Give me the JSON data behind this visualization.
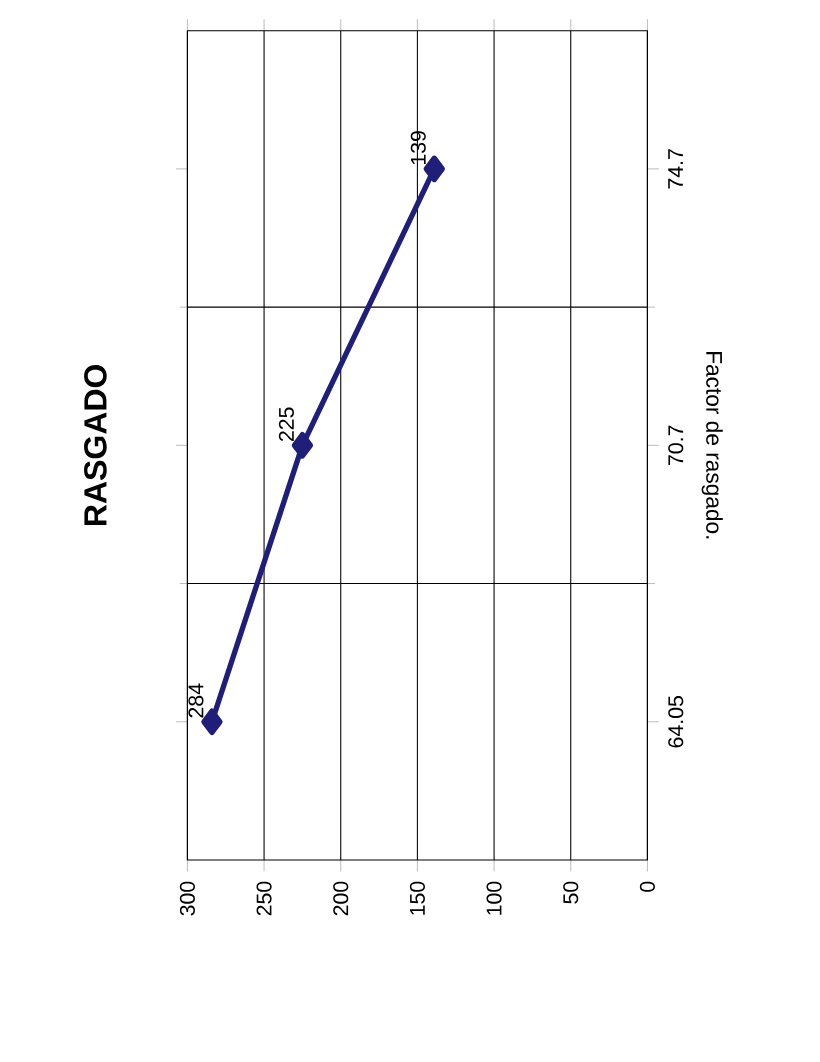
{
  "chart_data": {
    "type": "line",
    "orientation": "horizontal",
    "title": "RASGADO",
    "ylabel": "Factor de rasgado.",
    "categories": [
      "74.7",
      "70.7",
      "64.05"
    ],
    "values": [
      139,
      225,
      284
    ],
    "color": "#1f1f7a",
    "marker": "diamond",
    "line_style": "solid",
    "data_labels": true,
    "xlim": [
      300,
      0
    ],
    "xticks": [
      0,
      50,
      100,
      150,
      200,
      250,
      300
    ],
    "grid": true
  }
}
